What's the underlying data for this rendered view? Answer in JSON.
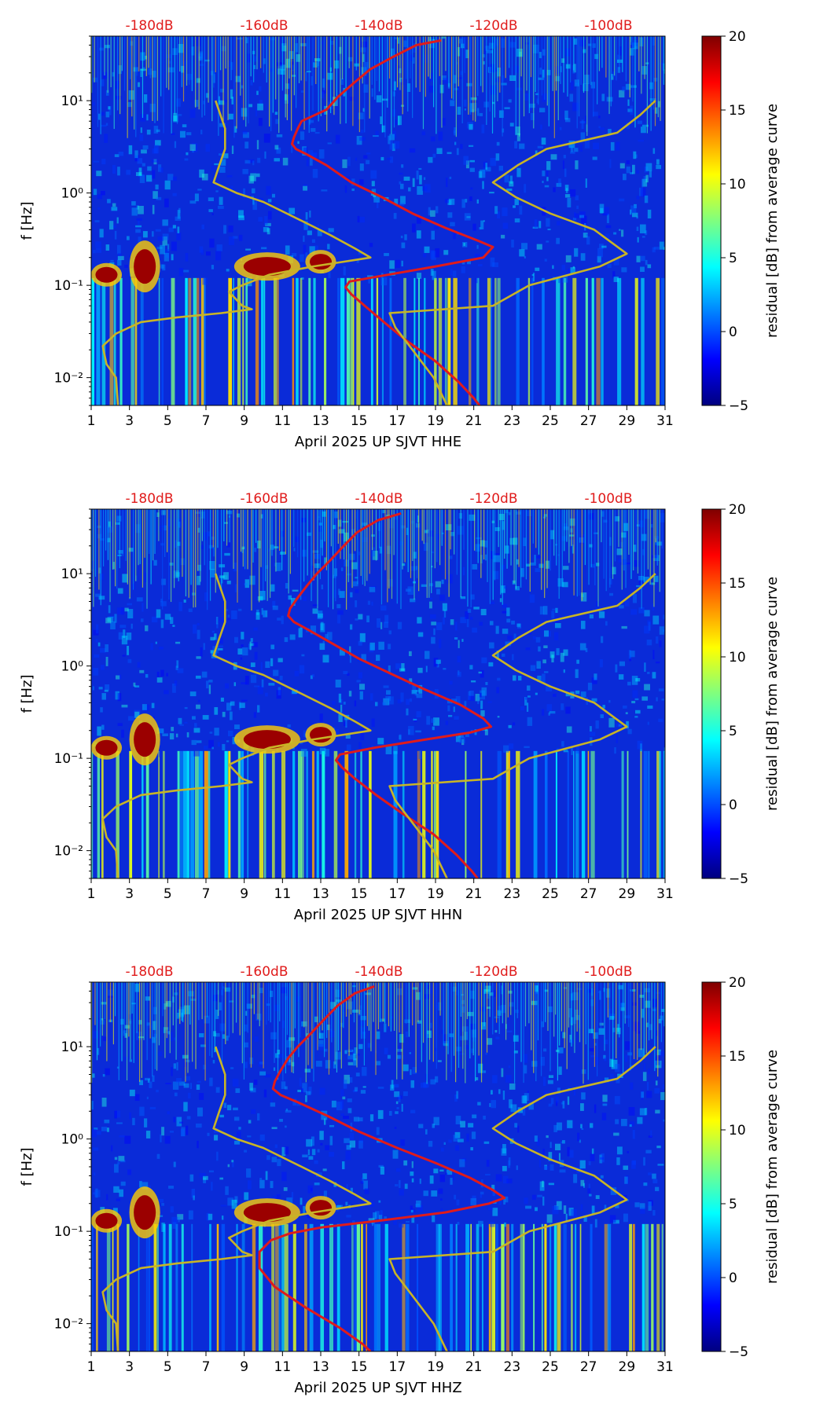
{
  "chart_data": [
    {
      "type": "heatmap",
      "xlabel": "April 2025 UP SJVT  HHE",
      "ylabel": "f [Hz]",
      "x_ticks": [
        "1",
        "3",
        "5",
        "7",
        "9",
        "11",
        "13",
        "15",
        "17",
        "19",
        "21",
        "23",
        "25",
        "27",
        "29",
        "31"
      ],
      "y_ticks": [
        "10⁻²",
        "10⁻¹",
        "10⁰",
        "10¹"
      ],
      "y_log": true,
      "ylim": [
        0.005,
        50
      ],
      "xlim": [
        1,
        31
      ],
      "top_ticks": [
        "-180dB",
        "-160dB",
        "-140dB",
        "-120dB",
        "-100dB"
      ],
      "colorbar_label": "residual [dB] from average curve",
      "colorbar_ticks": [
        "−5",
        "0",
        "5",
        "10",
        "15",
        "20"
      ],
      "colorbar_range": [
        -5,
        20
      ],
      "series": [
        {
          "color": "#e01b1b",
          "curve": "psd_average",
          "points": [
            [
              19.3,
              45
            ],
            [
              18.0,
              40
            ],
            [
              16.8,
              30
            ],
            [
              15.6,
              22
            ],
            [
              14.8,
              16
            ],
            [
              13.9,
              11
            ],
            [
              13.3,
              8
            ],
            [
              12.7,
              7
            ],
            [
              12.0,
              6
            ],
            [
              11.8,
              5
            ],
            [
              11.6,
              4
            ],
            [
              11.5,
              3.4
            ],
            [
              11.7,
              3
            ],
            [
              12.3,
              2.6
            ],
            [
              13.3,
              2
            ],
            [
              14.6,
              1.3
            ],
            [
              16.2,
              0.9
            ],
            [
              17.8,
              0.6
            ],
            [
              19.5,
              0.42
            ],
            [
              21.3,
              0.3
            ],
            [
              22.0,
              0.26
            ],
            [
              21.5,
              0.2
            ],
            [
              19.0,
              0.16
            ],
            [
              16.5,
              0.13
            ],
            [
              14.5,
              0.11
            ],
            [
              14.3,
              0.095
            ],
            [
              14.6,
              0.08
            ],
            [
              15.3,
              0.06
            ],
            [
              16.3,
              0.04
            ],
            [
              17.5,
              0.025
            ],
            [
              19.0,
              0.015
            ],
            [
              20.2,
              0.009
            ],
            [
              21.0,
              0.006
            ],
            [
              21.3,
              0.005
            ]
          ]
        },
        {
          "color": "#c8b426",
          "curve": "noise_model_low",
          "points": [
            [
              2.4,
              0.005
            ],
            [
              2.3,
              0.01
            ],
            [
              1.8,
              0.014
            ],
            [
              1.6,
              0.022
            ],
            [
              2.3,
              0.03
            ],
            [
              3.6,
              0.04
            ],
            [
              5.5,
              0.045
            ],
            [
              7.8,
              0.05
            ],
            [
              9.4,
              0.055
            ],
            [
              8.9,
              0.06
            ],
            [
              8.2,
              0.085
            ],
            [
              8.9,
              0.1
            ],
            [
              10.3,
              0.13
            ],
            [
              12.6,
              0.16
            ],
            [
              15.6,
              0.2
            ],
            [
              14.8,
              0.25
            ],
            [
              13.5,
              0.35
            ],
            [
              12.0,
              0.5
            ],
            [
              10.0,
              0.8
            ],
            [
              8.6,
              1.0
            ],
            [
              7.4,
              1.3
            ],
            [
              7.7,
              2.0
            ],
            [
              8.0,
              3.0
            ],
            [
              8.0,
              5.0
            ],
            [
              7.5,
              10.0
            ]
          ]
        },
        {
          "color": "#c8b426",
          "curve": "noise_model_high",
          "points": [
            [
              19.6,
              0.005
            ],
            [
              18.9,
              0.01
            ],
            [
              17.8,
              0.02
            ],
            [
              16.9,
              0.035
            ],
            [
              16.6,
              0.05
            ],
            [
              22.0,
              0.06
            ],
            [
              23.9,
              0.1
            ],
            [
              27.6,
              0.16
            ],
            [
              29.0,
              0.22
            ],
            [
              27.3,
              0.4
            ],
            [
              25.0,
              0.6
            ],
            [
              23.2,
              0.9
            ],
            [
              22.0,
              1.3
            ],
            [
              23.3,
              2.0
            ],
            [
              24.8,
              3.0
            ],
            [
              28.5,
              4.5
            ],
            [
              29.7,
              7.0
            ],
            [
              30.5,
              10.0
            ]
          ]
        }
      ]
    },
    {
      "type": "heatmap",
      "xlabel": "April 2025 UP SJVT  HHN",
      "ylabel": "f [Hz]",
      "x_ticks": [
        "1",
        "3",
        "5",
        "7",
        "9",
        "11",
        "13",
        "15",
        "17",
        "19",
        "21",
        "23",
        "25",
        "27",
        "29",
        "31"
      ],
      "y_ticks": [
        "10⁻²",
        "10⁻¹",
        "10⁰",
        "10¹"
      ],
      "y_log": true,
      "ylim": [
        0.005,
        50
      ],
      "xlim": [
        1,
        31
      ],
      "top_ticks": [
        "-180dB",
        "-160dB",
        "-140dB",
        "-120dB",
        "-100dB"
      ],
      "colorbar_label": "residual [dB] from average curve",
      "colorbar_ticks": [
        "−5",
        "0",
        "5",
        "10",
        "15",
        "20"
      ],
      "colorbar_range": [
        -5,
        20
      ],
      "series": [
        {
          "color": "#e01b1b",
          "curve": "psd_average",
          "points": [
            [
              17.2,
              45
            ],
            [
              16.0,
              38
            ],
            [
              14.9,
              28
            ],
            [
              14.2,
              20
            ],
            [
              13.5,
              14
            ],
            [
              12.8,
              10
            ],
            [
              12.3,
              7.5
            ],
            [
              11.8,
              5.5
            ],
            [
              11.4,
              4.2
            ],
            [
              11.3,
              3.5
            ],
            [
              11.6,
              3
            ],
            [
              12.3,
              2.5
            ],
            [
              13.5,
              1.8
            ],
            [
              15.0,
              1.2
            ],
            [
              16.8,
              0.8
            ],
            [
              18.5,
              0.55
            ],
            [
              20.3,
              0.38
            ],
            [
              21.5,
              0.27
            ],
            [
              21.9,
              0.22
            ],
            [
              20.8,
              0.19
            ],
            [
              18.5,
              0.16
            ],
            [
              15.8,
              0.13
            ],
            [
              14.0,
              0.11
            ],
            [
              13.8,
              0.095
            ],
            [
              14.1,
              0.08
            ],
            [
              14.8,
              0.06
            ],
            [
              15.9,
              0.04
            ],
            [
              17.3,
              0.025
            ],
            [
              18.9,
              0.015
            ],
            [
              20.1,
              0.009
            ],
            [
              20.9,
              0.006
            ],
            [
              21.2,
              0.005
            ]
          ]
        },
        {
          "color": "#c8b426",
          "curve": "noise_model_low",
          "points": [
            [
              2.4,
              0.005
            ],
            [
              2.3,
              0.01
            ],
            [
              1.8,
              0.014
            ],
            [
              1.6,
              0.022
            ],
            [
              2.3,
              0.03
            ],
            [
              3.6,
              0.04
            ],
            [
              5.5,
              0.045
            ],
            [
              7.8,
              0.05
            ],
            [
              9.4,
              0.055
            ],
            [
              8.9,
              0.06
            ],
            [
              8.2,
              0.085
            ],
            [
              8.9,
              0.1
            ],
            [
              10.3,
              0.13
            ],
            [
              12.6,
              0.16
            ],
            [
              15.6,
              0.2
            ],
            [
              14.8,
              0.25
            ],
            [
              13.5,
              0.35
            ],
            [
              12.0,
              0.5
            ],
            [
              10.0,
              0.8
            ],
            [
              8.6,
              1.0
            ],
            [
              7.4,
              1.3
            ],
            [
              7.7,
              2.0
            ],
            [
              8.0,
              3.0
            ],
            [
              8.0,
              5.0
            ],
            [
              7.5,
              10.0
            ]
          ]
        },
        {
          "color": "#c8b426",
          "curve": "noise_model_high",
          "points": [
            [
              19.6,
              0.005
            ],
            [
              18.9,
              0.01
            ],
            [
              17.8,
              0.02
            ],
            [
              16.9,
              0.035
            ],
            [
              16.6,
              0.05
            ],
            [
              22.0,
              0.06
            ],
            [
              23.9,
              0.1
            ],
            [
              27.6,
              0.16
            ],
            [
              29.0,
              0.22
            ],
            [
              27.3,
              0.4
            ],
            [
              25.0,
              0.6
            ],
            [
              23.2,
              0.9
            ],
            [
              22.0,
              1.3
            ],
            [
              23.3,
              2.0
            ],
            [
              24.8,
              3.0
            ],
            [
              28.5,
              4.5
            ],
            [
              29.7,
              7.0
            ],
            [
              30.5,
              10.0
            ]
          ]
        }
      ]
    },
    {
      "type": "heatmap",
      "xlabel": "April 2025 UP SJVT  HHZ",
      "ylabel": "f [Hz]",
      "x_ticks": [
        "1",
        "3",
        "5",
        "7",
        "9",
        "11",
        "13",
        "15",
        "17",
        "19",
        "21",
        "23",
        "25",
        "27",
        "29",
        "31"
      ],
      "y_ticks": [
        "10⁻²",
        "10⁻¹",
        "10⁰",
        "10¹"
      ],
      "y_log": true,
      "ylim": [
        0.005,
        50
      ],
      "xlim": [
        1,
        31
      ],
      "top_ticks": [
        "-180dB",
        "-160dB",
        "-140dB",
        "-120dB",
        "-100dB"
      ],
      "colorbar_label": "residual [dB] from average curve",
      "colorbar_ticks": [
        "−5",
        "0",
        "5",
        "10",
        "15",
        "20"
      ],
      "colorbar_range": [
        -5,
        20
      ],
      "series": [
        {
          "color": "#e01b1b",
          "curve": "psd_average",
          "points": [
            [
              15.8,
              45
            ],
            [
              14.8,
              38
            ],
            [
              13.9,
              28
            ],
            [
              13.2,
              20
            ],
            [
              12.5,
              14
            ],
            [
              11.8,
              10
            ],
            [
              11.3,
              7.5
            ],
            [
              10.9,
              5.5
            ],
            [
              10.6,
              4.2
            ],
            [
              10.5,
              3.5
            ],
            [
              10.9,
              3
            ],
            [
              11.8,
              2.5
            ],
            [
              13.3,
              1.8
            ],
            [
              15.0,
              1.2
            ],
            [
              17.0,
              0.8
            ],
            [
              19.0,
              0.55
            ],
            [
              20.8,
              0.38
            ],
            [
              22.0,
              0.28
            ],
            [
              22.6,
              0.23
            ],
            [
              21.8,
              0.2
            ],
            [
              19.5,
              0.16
            ],
            [
              16.0,
              0.13
            ],
            [
              13.0,
              0.11
            ],
            [
              11.4,
              0.095
            ],
            [
              10.4,
              0.08
            ],
            [
              9.8,
              0.06
            ],
            [
              9.8,
              0.04
            ],
            [
              10.6,
              0.025
            ],
            [
              12.2,
              0.015
            ],
            [
              14.0,
              0.009
            ],
            [
              15.2,
              0.006
            ],
            [
              15.6,
              0.005
            ]
          ]
        },
        {
          "color": "#c8b426",
          "curve": "noise_model_low",
          "points": [
            [
              2.4,
              0.005
            ],
            [
              2.3,
              0.01
            ],
            [
              1.8,
              0.014
            ],
            [
              1.6,
              0.022
            ],
            [
              2.3,
              0.03
            ],
            [
              3.6,
              0.04
            ],
            [
              5.5,
              0.045
            ],
            [
              7.8,
              0.05
            ],
            [
              9.4,
              0.055
            ],
            [
              8.9,
              0.06
            ],
            [
              8.2,
              0.085
            ],
            [
              8.9,
              0.1
            ],
            [
              10.3,
              0.13
            ],
            [
              12.6,
              0.16
            ],
            [
              15.6,
              0.2
            ],
            [
              14.8,
              0.25
            ],
            [
              13.5,
              0.35
            ],
            [
              12.0,
              0.5
            ],
            [
              10.0,
              0.8
            ],
            [
              8.6,
              1.0
            ],
            [
              7.4,
              1.3
            ],
            [
              7.7,
              2.0
            ],
            [
              8.0,
              3.0
            ],
            [
              8.0,
              5.0
            ],
            [
              7.5,
              10.0
            ]
          ]
        },
        {
          "color": "#c8b426",
          "curve": "noise_model_high",
          "points": [
            [
              19.6,
              0.005
            ],
            [
              18.9,
              0.01
            ],
            [
              17.8,
              0.02
            ],
            [
              16.9,
              0.035
            ],
            [
              16.6,
              0.05
            ],
            [
              22.0,
              0.06
            ],
            [
              23.9,
              0.1
            ],
            [
              27.6,
              0.16
            ],
            [
              29.0,
              0.22
            ],
            [
              27.3,
              0.4
            ],
            [
              25.0,
              0.6
            ],
            [
              23.2,
              0.9
            ],
            [
              22.0,
              1.3
            ],
            [
              23.3,
              2.0
            ],
            [
              24.8,
              3.0
            ],
            [
              28.5,
              4.5
            ],
            [
              29.7,
              7.0
            ],
            [
              30.5,
              10.0
            ]
          ]
        }
      ]
    }
  ],
  "colors": {
    "top_tick_label": "#e01b1b",
    "colormap": [
      "#00007f",
      "#0000ff",
      "#007fff",
      "#00ffff",
      "#7fff7f",
      "#ffff00",
      "#ff7f00",
      "#ff0000",
      "#7f0000"
    ]
  }
}
